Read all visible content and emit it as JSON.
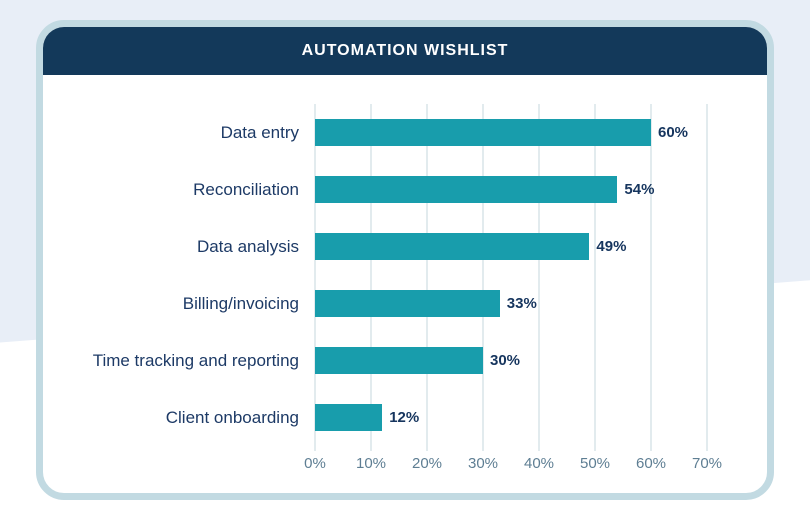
{
  "card": {
    "title": "AUTOMATION WISHLIST"
  },
  "colors": {
    "bar": "#189dac",
    "header_navy": "#13395a",
    "category_label": "#1d3a66",
    "value_label": "#16355e",
    "axis_label": "#5e7e93",
    "gridline": "#c6d7dd",
    "card_border": "#c2dae2",
    "background_accent": "#e8eef7"
  },
  "chart_data": {
    "type": "bar",
    "orientation": "horizontal",
    "title": "AUTOMATION WISHLIST",
    "categories": [
      "Data entry",
      "Reconciliation",
      "Data analysis",
      "Billing/invoicing",
      "Time tracking and reporting",
      "Client onboarding"
    ],
    "values": [
      60,
      54,
      49,
      33,
      30,
      12
    ],
    "value_labels": [
      "60%",
      "54%",
      "49%",
      "33%",
      "30%",
      "12%"
    ],
    "x_ticks": [
      "0%",
      "10%",
      "20%",
      "30%",
      "40%",
      "50%",
      "60%",
      "70%"
    ],
    "xlim": [
      0,
      70
    ],
    "grid": true,
    "legend": false
  }
}
